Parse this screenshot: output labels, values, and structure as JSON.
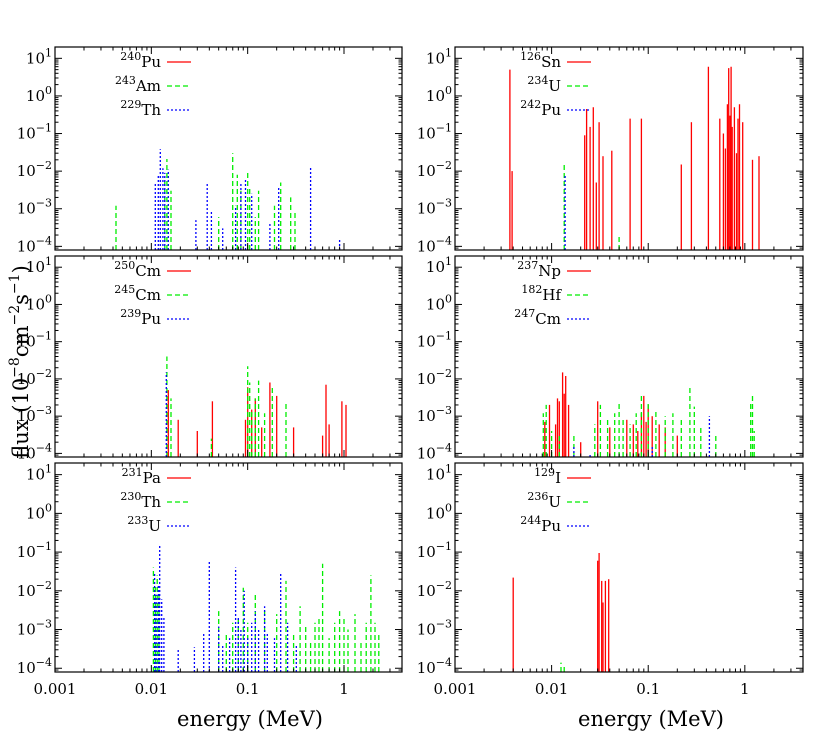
{
  "figure": {
    "xlabel": "energy (MeV)",
    "ylabel_main": "flux (10",
    "ylabel_exp1": "−8",
    "ylabel_mid": "cm",
    "ylabel_exp2": "−2",
    "ylabel_mid2": "s",
    "ylabel_exp3": "−1",
    "ylabel_end": ")"
  },
  "axes": {
    "x_scale": "log",
    "y_scale": "log",
    "xlim": [
      0.001,
      4
    ],
    "ylim": [
      8e-05,
      20
    ],
    "x_ticks": [
      {
        "v": 0.001,
        "label": "0.001"
      },
      {
        "v": 0.01,
        "label": "0.01"
      },
      {
        "v": 0.1,
        "label": "0.1"
      },
      {
        "v": 1,
        "label": "1"
      }
    ],
    "y_ticks": [
      {
        "v": 0.0001,
        "base": "10",
        "exp": "−4"
      },
      {
        "v": 0.001,
        "base": "10",
        "exp": "−3"
      },
      {
        "v": 0.01,
        "base": "10",
        "exp": "−2"
      },
      {
        "v": 0.1,
        "base": "10",
        "exp": "−1"
      },
      {
        "v": 1,
        "base": "10",
        "exp": "0"
      },
      {
        "v": 10,
        "base": "10",
        "exp": "1"
      }
    ],
    "legend_position": "top-left",
    "series_colors": [
      "#ff0000",
      "#00ee00",
      "#0000ff"
    ],
    "series_styles": [
      "solid",
      "dashed",
      "dotted"
    ]
  },
  "chart_data": [
    {
      "type": "line",
      "panel": "top-left",
      "series": [
        {
          "name": "Pu",
          "mass": "240",
          "color": "#ff0000",
          "style": "solid",
          "lines": []
        },
        {
          "name": "Am",
          "mass": "243",
          "color": "#00ee00",
          "style": "dashed",
          "lines": [
            [
              0.0043,
              0.0012
            ],
            [
              0.0138,
              0.007
            ],
            [
              0.0145,
              0.021
            ],
            [
              0.016,
              0.003
            ],
            [
              0.05,
              0.0006
            ],
            [
              0.07,
              0.03
            ],
            [
              0.078,
              0.008
            ],
            [
              0.085,
              0.003
            ],
            [
              0.1,
              0.01
            ],
            [
              0.105,
              0.004
            ],
            [
              0.12,
              0.0006
            ],
            [
              0.13,
              0.003
            ],
            [
              0.19,
              0.0012
            ],
            [
              0.22,
              0.005
            ],
            [
              0.28,
              0.002
            ],
            [
              0.31,
              0.0008
            ]
          ]
        },
        {
          "name": "Th",
          "mass": "229",
          "color": "#0000ff",
          "style": "dotted",
          "lines": [
            [
              0.011,
              0.005
            ],
            [
              0.0118,
              0.008
            ],
            [
              0.0124,
              0.038
            ],
            [
              0.0132,
              0.012
            ],
            [
              0.0138,
              0.009
            ],
            [
              0.015,
              0.011
            ],
            [
              0.029,
              0.0005
            ],
            [
              0.038,
              0.005
            ],
            [
              0.042,
              0.0009
            ],
            [
              0.055,
              0.0003
            ],
            [
              0.075,
              0.0012
            ],
            [
              0.085,
              0.005
            ],
            [
              0.095,
              0.006
            ],
            [
              0.11,
              0.0025
            ],
            [
              0.17,
              0.0004
            ],
            [
              0.21,
              0.004
            ],
            [
              0.45,
              0.013
            ],
            [
              0.9,
              0.00015
            ]
          ]
        }
      ]
    },
    {
      "type": "line",
      "panel": "top-right",
      "series": [
        {
          "name": "Sn",
          "mass": "126",
          "color": "#ff0000",
          "style": "solid",
          "lines": [
            [
              0.0037,
              5
            ],
            [
              0.0039,
              0.01
            ],
            [
              0.022,
              0.09
            ],
            [
              0.023,
              0.45
            ],
            [
              0.025,
              0.15
            ],
            [
              0.027,
              0.5
            ],
            [
              0.029,
              0.005
            ],
            [
              0.031,
              0.2
            ],
            [
              0.034,
              0.025
            ],
            [
              0.042,
              0.035
            ],
            [
              0.065,
              0.25
            ],
            [
              0.085,
              0.25
            ],
            [
              0.22,
              0.015
            ],
            [
              0.28,
              0.2
            ],
            [
              0.42,
              6
            ],
            [
              0.55,
              0.25
            ],
            [
              0.6,
              0.1
            ],
            [
              0.63,
              0.04
            ],
            [
              0.66,
              0.6
            ],
            [
              0.68,
              5.5
            ],
            [
              0.7,
              0.3
            ],
            [
              0.72,
              6
            ],
            [
              0.74,
              0.15
            ],
            [
              0.78,
              0.5
            ],
            [
              0.82,
              0.03
            ],
            [
              0.85,
              0.25
            ],
            [
              0.88,
              0.6
            ],
            [
              0.95,
              0.2
            ],
            [
              1.2,
              0.02
            ],
            [
              1.4,
              0.025
            ]
          ]
        },
        {
          "name": "U",
          "mass": "234",
          "color": "#00ee00",
          "style": "dashed",
          "lines": [
            [
              0.0135,
              0.015
            ],
            [
              0.05,
              0.00018
            ]
          ]
        },
        {
          "name": "Pu",
          "mass": "242",
          "color": "#0000ff",
          "style": "dotted",
          "lines": [
            [
              0.0138,
              0.008
            ]
          ]
        }
      ]
    },
    {
      "type": "line",
      "panel": "middle-left",
      "series": [
        {
          "name": "Cm",
          "mass": "250",
          "color": "#ff0000",
          "style": "solid",
          "lines": [
            [
              0.015,
              0.005
            ],
            [
              0.019,
              0.0008
            ],
            [
              0.03,
              0.0004
            ],
            [
              0.043,
              0.0025
            ],
            [
              0.095,
              0.0008
            ],
            [
              0.1,
              0.006
            ],
            [
              0.11,
              0.0015
            ],
            [
              0.12,
              0.003
            ],
            [
              0.14,
              0.0005
            ],
            [
              0.17,
              0.008
            ],
            [
              0.2,
              0.0035
            ],
            [
              0.3,
              0.0005
            ],
            [
              0.6,
              0.0003
            ],
            [
              0.65,
              0.007
            ],
            [
              0.7,
              0.0006
            ],
            [
              0.95,
              0.0025
            ],
            [
              1.05,
              0.002
            ]
          ]
        },
        {
          "name": "Cm",
          "mass": "245",
          "color": "#00ee00",
          "style": "dashed",
          "lines": [
            [
              0.0145,
              0.04
            ],
            [
              0.016,
              0.003
            ],
            [
              0.042,
              0.00025
            ],
            [
              0.1,
              0.022
            ],
            [
              0.105,
              0.008
            ],
            [
              0.11,
              0.0015
            ],
            [
              0.12,
              0.003
            ],
            [
              0.13,
              0.009
            ],
            [
              0.15,
              0.0012
            ],
            [
              0.18,
              0.006
            ],
            [
              0.25,
              0.0025
            ]
          ]
        },
        {
          "name": "Pu",
          "mass": "239",
          "color": "#0000ff",
          "style": "dotted",
          "lines": [
            [
              0.0143,
              0.015
            ]
          ]
        }
      ]
    },
    {
      "type": "line",
      "panel": "middle-right",
      "series": [
        {
          "name": "Np",
          "mass": "237",
          "color": "#ff0000",
          "style": "solid",
          "lines": [
            [
              0.0085,
              0.0007
            ],
            [
              0.0095,
              0.002
            ],
            [
              0.011,
              0.0006
            ],
            [
              0.0115,
              0.003
            ],
            [
              0.012,
              0.0025
            ],
            [
              0.013,
              0.015
            ],
            [
              0.0135,
              0.004
            ],
            [
              0.014,
              0.012
            ],
            [
              0.015,
              0.002
            ],
            [
              0.02,
              0.0002
            ],
            [
              0.03,
              0.0025
            ],
            [
              0.04,
              0.0005
            ],
            [
              0.06,
              0.0008
            ],
            [
              0.07,
              0.0006
            ],
            [
              0.078,
              0.0004
            ],
            [
              0.085,
              0.0012
            ],
            [
              0.09,
              0.0035
            ],
            [
              0.095,
              0.0007
            ],
            [
              0.1,
              0.002
            ],
            [
              0.11,
              0.001
            ],
            [
              0.13,
              0.0006
            ],
            [
              0.15,
              0.0005
            ],
            [
              0.2,
              0.0003
            ]
          ]
        },
        {
          "name": "Hf",
          "mass": "182",
          "color": "#00ee00",
          "style": "dashed",
          "lines": [
            [
              0.0082,
              0.0012
            ],
            [
              0.0088,
              0.002
            ],
            [
              0.01,
              0.0004
            ],
            [
              0.012,
              0.0003
            ],
            [
              0.017,
              0.0003
            ],
            [
              0.028,
              0.0006
            ],
            [
              0.032,
              0.002
            ],
            [
              0.038,
              0.0008
            ],
            [
              0.045,
              0.0012
            ],
            [
              0.05,
              0.0025
            ],
            [
              0.055,
              0.0008
            ],
            [
              0.065,
              0.0006
            ],
            [
              0.075,
              0.0012
            ],
            [
              0.085,
              0.0035
            ],
            [
              0.1,
              0.0025
            ],
            [
              0.12,
              0.0015
            ],
            [
              0.15,
              0.001
            ],
            [
              0.18,
              0.0012
            ],
            [
              0.22,
              0.0008
            ],
            [
              0.27,
              0.006
            ],
            [
              0.3,
              0.0018
            ],
            [
              0.35,
              0.0005
            ],
            [
              0.5,
              0.0003
            ],
            [
              1.15,
              0.0025
            ],
            [
              1.2,
              0.0035
            ],
            [
              1.25,
              0.0004
            ]
          ]
        },
        {
          "name": "Cm",
          "mass": "247",
          "color": "#0000ff",
          "style": "dotted",
          "lines": [
            [
              0.017,
              0.00015
            ],
            [
              0.025,
              0.0001
            ],
            [
              0.11,
              0.00015
            ],
            [
              0.43,
              0.001
            ]
          ]
        }
      ]
    },
    {
      "type": "line",
      "panel": "bottom-left",
      "series": [
        {
          "name": "Pa",
          "mass": "231",
          "color": "#ff0000",
          "style": "solid",
          "lines": []
        },
        {
          "name": "Th",
          "mass": "230",
          "color": "#00ee00",
          "style": "dashed",
          "lines": [
            [
              0.0105,
              0.04
            ],
            [
              0.011,
              0.015
            ],
            [
              0.0115,
              0.025
            ],
            [
              0.012,
              0.008
            ],
            [
              0.05,
              0.003
            ],
            [
              0.06,
              0.0008
            ],
            [
              0.07,
              0.0015
            ],
            [
              0.08,
              0.002
            ],
            [
              0.09,
              0.012
            ],
            [
              0.1,
              0.0015
            ],
            [
              0.12,
              0.008
            ],
            [
              0.15,
              0.003
            ],
            [
              0.2,
              0.0025
            ],
            [
              0.25,
              0.018
            ],
            [
              0.3,
              0.0008
            ],
            [
              0.35,
              0.004
            ],
            [
              0.4,
              0.0012
            ],
            [
              0.45,
              0.0005
            ],
            [
              0.5,
              0.0015
            ],
            [
              0.55,
              0.002
            ],
            [
              0.6,
              0.05
            ],
            [
              0.7,
              0.0006
            ],
            [
              0.8,
              0.0015
            ],
            [
              0.9,
              0.003
            ],
            [
              1.0,
              0.002
            ],
            [
              1.1,
              0.001
            ],
            [
              1.3,
              0.0025
            ],
            [
              1.5,
              0.0005
            ],
            [
              1.7,
              0.0015
            ],
            [
              1.9,
              0.025
            ],
            [
              2.1,
              0.0015
            ],
            [
              2.3,
              0.0008
            ]
          ]
        },
        {
          "name": "U",
          "mass": "233",
          "color": "#0000ff",
          "style": "dotted",
          "lines": [
            [
              0.0108,
              0.03
            ],
            [
              0.0112,
              0.008
            ],
            [
              0.0118,
              0.015
            ],
            [
              0.0122,
              0.16
            ],
            [
              0.0128,
              0.006
            ],
            [
              0.0135,
              0.002
            ],
            [
              0.019,
              0.0003
            ],
            [
              0.028,
              0.00035
            ],
            [
              0.035,
              0.0008
            ],
            [
              0.04,
              0.06
            ],
            [
              0.05,
              0.0012
            ],
            [
              0.055,
              0.0004
            ],
            [
              0.065,
              0.0006
            ],
            [
              0.075,
              0.04
            ],
            [
              0.08,
              0.002
            ],
            [
              0.085,
              0.001
            ],
            [
              0.092,
              0.01
            ],
            [
              0.1,
              0.0006
            ],
            [
              0.11,
              0.0015
            ],
            [
              0.12,
              0.003
            ],
            [
              0.13,
              0.001
            ],
            [
              0.15,
              0.004
            ],
            [
              0.16,
              0.0008
            ],
            [
              0.19,
              0.0006
            ],
            [
              0.22,
              0.03
            ],
            [
              0.26,
              0.0015
            ],
            [
              0.32,
              0.0004
            ]
          ]
        }
      ]
    },
    {
      "type": "line",
      "panel": "bottom-right",
      "series": [
        {
          "name": "I",
          "mass": "129",
          "color": "#ff0000",
          "style": "solid",
          "lines": [
            [
              0.004,
              0.022
            ],
            [
              0.03,
              0.06
            ],
            [
              0.031,
              0.095
            ],
            [
              0.033,
              0.018
            ],
            [
              0.034,
              0.005
            ],
            [
              0.036,
              0.018
            ],
            [
              0.039,
              0.02
            ]
          ]
        },
        {
          "name": "U",
          "mass": "236",
          "color": "#00ee00",
          "style": "dashed",
          "lines": [
            [
              0.0125,
              0.00014
            ],
            [
              0.0135,
              0.00012
            ]
          ]
        },
        {
          "name": "Pu",
          "mass": "244",
          "color": "#0000ff",
          "style": "dotted",
          "lines": []
        }
      ]
    }
  ]
}
